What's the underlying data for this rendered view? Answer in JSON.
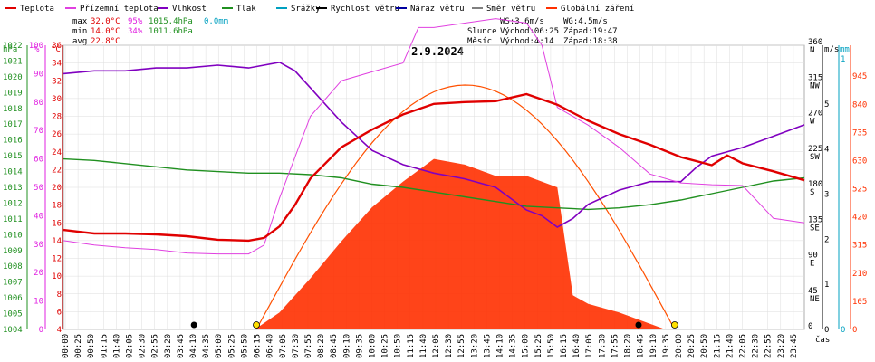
{
  "legend": [
    {
      "label": "Teplota",
      "color": "#e00000"
    },
    {
      "label": "Přízemní teplota",
      "color": "#e040e0"
    },
    {
      "label": "Vlhkost",
      "color": "#8000c0"
    },
    {
      "label": "Tlak",
      "color": "#209020"
    },
    {
      "label": "Srážky",
      "color": "#00a0c0"
    },
    {
      "label": "Rychlost větru",
      "color": "#000000"
    },
    {
      "label": "Náraz větru",
      "color": "#0000a0"
    },
    {
      "label": "Směr větru",
      "color": "#808080"
    },
    {
      "label": "Globální záření",
      "color": "#ff3000"
    }
  ],
  "stats": {
    "max_label": "max",
    "max_temp": "32.0°C",
    "max_hum": "95%",
    "max_press": "1015.4hPa",
    "max_rain": "0.0mm",
    "min_label": "min",
    "min_temp": "14.0°C",
    "min_hum": "34%",
    "min_press": "1011.6hPa",
    "avg_label": "avg",
    "avg_temp": "22.8°C"
  },
  "wind_info": {
    "ws": "WS:3.6m/s",
    "wg": "WG:4.5m/s"
  },
  "sun": {
    "label": "Slunce",
    "rise": "Východ:06:25",
    "set": "Západ:19:47"
  },
  "moon": {
    "label": "Měsíc",
    "rise": "Východ:4:14",
    "set": "Západ:18:38"
  },
  "chart_data": {
    "type": "line",
    "title": "2.9.2024",
    "xlabel": "čas",
    "x_ticks": [
      "00:00",
      "00:25",
      "00:50",
      "01:15",
      "01:40",
      "02:05",
      "02:30",
      "02:55",
      "03:20",
      "03:45",
      "04:10",
      "04:35",
      "05:00",
      "05:25",
      "05:50",
      "06:15",
      "06:40",
      "07:05",
      "07:30",
      "07:55",
      "08:20",
      "08:45",
      "09:10",
      "09:35",
      "10:00",
      "10:25",
      "10:50",
      "11:15",
      "11:40",
      "12:05",
      "12:30",
      "12:55",
      "13:20",
      "13:45",
      "14:10",
      "14:35",
      "15:00",
      "15:25",
      "15:50",
      "16:15",
      "16:40",
      "17:05",
      "17:30",
      "17:55",
      "18:20",
      "18:45",
      "19:10",
      "19:35",
      "20:00",
      "20:25",
      "20:50",
      "21:15",
      "21:40",
      "22:05",
      "22:30",
      "22:55",
      "23:20",
      "23:45"
    ],
    "axes": {
      "pressure": {
        "label": "hPa",
        "color": "#209020",
        "ticks": [
          "1004",
          "1005",
          "1006",
          "1007",
          "1008",
          "1009",
          "1010",
          "1011",
          "1012",
          "1013",
          "1014",
          "1015",
          "1016",
          "1017",
          "1018",
          "1019",
          "1020",
          "1021",
          "1022"
        ]
      },
      "humidity": {
        "label": "%",
        "color": "#e020e0",
        "ticks": [
          "0",
          "10",
          "20",
          "30",
          "40",
          "50",
          "60",
          "70",
          "80",
          "90",
          "100"
        ]
      },
      "temperature": {
        "label": "°C",
        "color": "#e00000",
        "ticks": [
          "4",
          "6",
          "8",
          "10",
          "12",
          "14",
          "16",
          "18",
          "20",
          "22",
          "24",
          "26",
          "28",
          "30",
          "32",
          "34",
          "36"
        ]
      },
      "wind_dir": {
        "ticks": [
          "0",
          "45 NE",
          "90 E",
          "135 SE",
          "180 S",
          "225 SW",
          "270 W",
          "315 NW",
          "360 N"
        ]
      },
      "wind_speed": {
        "label": "m/s",
        "color": "#000000",
        "ticks": [
          "0",
          "1",
          "2",
          "3",
          "4",
          "5"
        ]
      },
      "rain": {
        "label": "mm",
        "color": "#00a0c0",
        "ticks": [
          "0",
          "1"
        ]
      },
      "radiation": {
        "color": "#ff3000",
        "ticks": [
          "0",
          "105",
          "210",
          "315",
          "420",
          "525",
          "630",
          "735",
          "840",
          "945"
        ]
      }
    },
    "series": [
      {
        "name": "Teplota",
        "unit": "°C",
        "x": [
          0,
          0.5,
          1,
          2,
          3,
          4,
          5,
          6,
          6.5,
          7,
          7.5,
          8,
          9,
          10,
          11,
          12,
          13,
          14,
          15,
          16,
          17,
          18,
          19,
          20,
          21,
          21.5,
          22,
          23,
          24
        ],
        "y": [
          15.2,
          15,
          14.8,
          14.8,
          14.7,
          14.5,
          14.1,
          14,
          14.3,
          15.6,
          18,
          21,
          24.5,
          26.5,
          28.2,
          29.4,
          29.6,
          29.7,
          30.5,
          29.3,
          27.5,
          26,
          24.8,
          23.4,
          22.5,
          23.6,
          22.7,
          21.8,
          20.8
        ]
      },
      {
        "name": "Přízemní teplota",
        "unit": "°C",
        "x": [
          0,
          1,
          2,
          3,
          4,
          5,
          6,
          6.5,
          7,
          8,
          9,
          10,
          11,
          11.5,
          12,
          13,
          14,
          15,
          15.5,
          16,
          17,
          18,
          19,
          20,
          21,
          22,
          23,
          24
        ],
        "y": [
          14,
          13.5,
          13.2,
          13,
          12.6,
          12.5,
          12.5,
          13.5,
          18.8,
          28,
          32,
          33,
          34,
          38,
          38,
          38.5,
          39,
          38.5,
          36,
          29,
          27,
          24.5,
          21.5,
          20.5,
          20.3,
          20.2,
          16.5,
          16
        ]
      },
      {
        "name": "Vlhkost",
        "unit": "%",
        "x": [
          0,
          1,
          2,
          3,
          4,
          5,
          6,
          7,
          7.5,
          8,
          9,
          10,
          11,
          12,
          13,
          14,
          15,
          15.5,
          16,
          16.5,
          17,
          18,
          19,
          20,
          20.5,
          21,
          22,
          23,
          24
        ],
        "y": [
          90,
          91,
          91,
          92,
          92,
          93,
          92,
          94,
          91,
          85,
          73,
          63,
          58,
          55,
          53,
          50,
          42,
          40,
          36,
          39,
          44,
          49,
          52,
          52,
          57,
          61,
          64,
          68,
          72
        ]
      },
      {
        "name": "Tlak",
        "unit": "hPa",
        "x": [
          0,
          1,
          2,
          3,
          4,
          5,
          6,
          7,
          8,
          9,
          10,
          11,
          12,
          13,
          14,
          15,
          16,
          17,
          18,
          19,
          20,
          21,
          22,
          23,
          24
        ],
        "y": [
          1014.8,
          1014.7,
          1014.5,
          1014.3,
          1014.1,
          1014.0,
          1013.9,
          1013.9,
          1013.8,
          1013.6,
          1013.2,
          1013.0,
          1012.7,
          1012.4,
          1012.1,
          1011.8,
          1011.7,
          1011.6,
          1011.7,
          1011.9,
          1012.2,
          1012.6,
          1013.0,
          1013.4,
          1013.6
        ]
      },
      {
        "name": "Globální záření",
        "unit": "W/m2",
        "x": [
          6.2,
          7,
          8,
          9,
          10,
          11,
          12,
          13,
          14,
          15,
          16,
          16.5,
          17,
          18,
          19,
          19.5
        ],
        "y": [
          0,
          60,
          180,
          310,
          430,
          520,
          600,
          580,
          540,
          540,
          500,
          120,
          90,
          60,
          20,
          0
        ]
      }
    ]
  }
}
